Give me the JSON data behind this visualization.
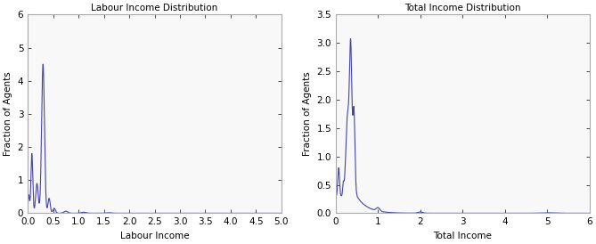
{
  "left_title": "Labour Income Distribution",
  "left_xlabel": "Labour Income",
  "left_ylabel": "Fraction of Agents",
  "left_xlim": [
    0,
    5
  ],
  "left_ylim": [
    0,
    6
  ],
  "left_xticks": [
    0,
    0.5,
    1,
    1.5,
    2,
    2.5,
    3,
    3.5,
    4,
    4.5,
    5
  ],
  "left_yticks": [
    0,
    1,
    2,
    3,
    4,
    5,
    6
  ],
  "right_title": "Total Income Distribution",
  "right_xlabel": "Total Income",
  "right_ylabel": "Fraction of Agents",
  "right_xlim": [
    0,
    6
  ],
  "right_ylim": [
    0,
    3.5
  ],
  "right_xticks": [
    0,
    1,
    2,
    3,
    4,
    5,
    6
  ],
  "right_yticks": [
    0,
    0.5,
    1,
    1.5,
    2,
    2.5,
    3,
    3.5
  ],
  "line_color": "#4444aa",
  "bg_color": "#f8f8f8",
  "fig_color": "#ffffff",
  "font_size": 7.5
}
